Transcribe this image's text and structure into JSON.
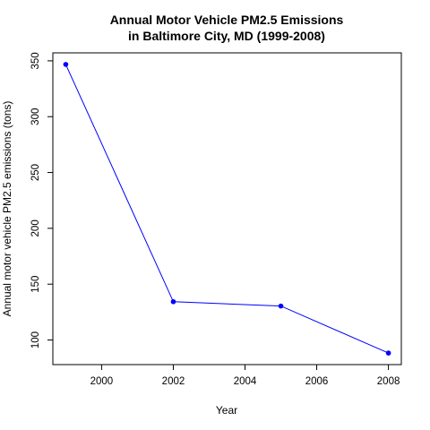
{
  "chart_data": {
    "type": "line",
    "title": "Annual Motor Vehicle PM2.5 Emissions",
    "subtitle": "in Baltimore City, MD (1999-2008)",
    "xlabel": "Year",
    "ylabel": "Annual motor vehicle PM2.5 emissions (tons)",
    "x": [
      1999,
      2002,
      2005,
      2008
    ],
    "values": [
      346.8,
      134.3,
      130.4,
      88.3
    ],
    "xlim": [
      1999,
      2008
    ],
    "ylim": [
      88.3,
      346.8
    ],
    "x_ticks": [
      2000,
      2002,
      2004,
      2006,
      2008
    ],
    "y_ticks": [
      100,
      150,
      200,
      250,
      300,
      350
    ],
    "grid": false,
    "line_color": "#0000ff",
    "marker_color": "#0000ff"
  }
}
